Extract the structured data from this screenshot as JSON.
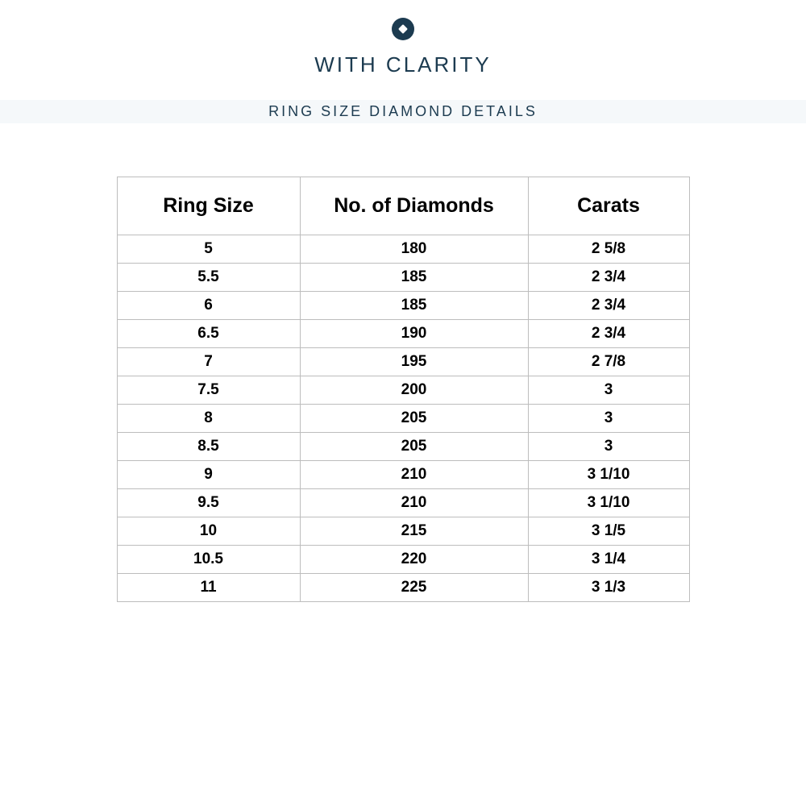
{
  "brand": {
    "name": "WITH CLARITY",
    "icon": "diamond-in-circle-icon"
  },
  "banner": {
    "title": "RING SIZE DIAMOND DETAILS"
  },
  "table": {
    "columns": [
      "Ring Size",
      "No. of Diamonds",
      "Carats"
    ],
    "rows": [
      [
        "5",
        "180",
        "2 5/8"
      ],
      [
        "5.5",
        "185",
        "2 3/4"
      ],
      [
        "6",
        "185",
        "2 3/4"
      ],
      [
        "6.5",
        "190",
        "2 3/4"
      ],
      [
        "7",
        "195",
        "2 7/8"
      ],
      [
        "7.5",
        "200",
        "3"
      ],
      [
        "8",
        "205",
        "3"
      ],
      [
        "8.5",
        "205",
        "3"
      ],
      [
        "9",
        "210",
        "3 1/10"
      ],
      [
        "9.5",
        "210",
        "3 1/10"
      ],
      [
        "10",
        "215",
        "3 1/5"
      ],
      [
        "10.5",
        "220",
        "3 1/4"
      ],
      [
        "11",
        "225",
        "3 1/3"
      ]
    ]
  },
  "colors": {
    "brand_navy": "#1c3b50",
    "banner_background": "#f5f8fa",
    "table_border": "#bdbdbd",
    "table_text": "#000000",
    "page_background": "#ffffff"
  }
}
